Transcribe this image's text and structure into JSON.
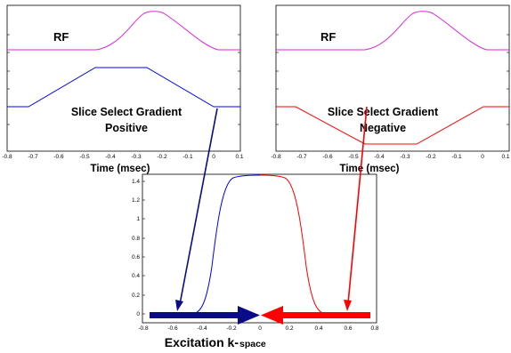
{
  "colors": {
    "rf": "#e020e0",
    "positive_gradient": "#0000ff",
    "negative_gradient": "#ff0000",
    "kspace_left": "#0000ff",
    "kspace_right": "#ff0000",
    "arrow_left": "#0b0b8a",
    "arrow_right": "#ff0000"
  },
  "left_panel": {
    "rf_label": "RF",
    "gradient_label_line1": "Slice Select Gradient",
    "gradient_label_line2": "Positive",
    "xlabel": "Time (msec)",
    "xticks": [
      "-0.8",
      "-0.7",
      "-0.6",
      "-0.5",
      "-0.4",
      "-0.3",
      "-0.2",
      "-0.1",
      "0",
      "0.1"
    ]
  },
  "right_panel": {
    "rf_label": "RF",
    "gradient_label_line1": "Slice Select Gradient",
    "gradient_label_line2": "Negative",
    "xlabel": "Time (msec)",
    "xticks": [
      "-0.8",
      "-0.7",
      "-0.6",
      "-0.5",
      "-0.4",
      "-0.3",
      "-0.2",
      "-0.1",
      "0",
      "0.1"
    ]
  },
  "bottom_panel": {
    "title_main": "Excitation k-",
    "title_sub": "space",
    "xticks": [
      "-0.8",
      "-0.6",
      "-0.4",
      "-0.2",
      "0",
      "0.2",
      "0.4",
      "0.6",
      "0.8"
    ],
    "yticks": [
      "1.4",
      "1.2",
      "1",
      "0.8",
      "0.6",
      "0.4",
      "0.2",
      "0"
    ]
  }
}
